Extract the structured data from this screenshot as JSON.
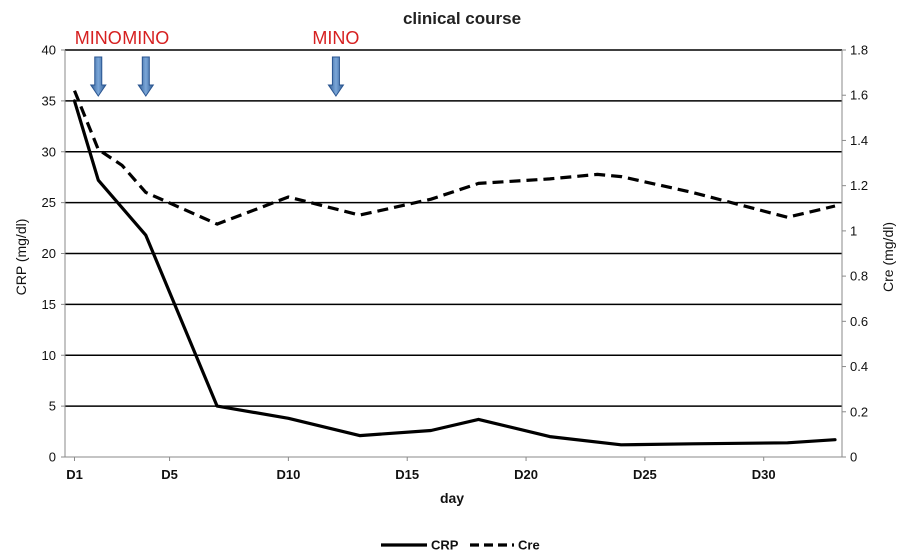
{
  "chart_data": {
    "type": "line",
    "title": "clinical course",
    "xlabel": "day",
    "ylabel_left": "CRP (mg/dl)",
    "ylabel_right": "Cre (mg/dl)",
    "xlim": [
      1,
      33
    ],
    "ylim_left": [
      0,
      40
    ],
    "ylim_right": [
      0,
      1.8
    ],
    "y_ticks_left": [
      "0",
      "5",
      "10",
      "15",
      "20",
      "25",
      "30",
      "35",
      "40"
    ],
    "y_ticks_right": [
      "0",
      "0.2",
      "0.4",
      "0.6",
      "0.8",
      "1",
      "1.2",
      "1.4",
      "1.6",
      "1.8"
    ],
    "x_ticks": [
      {
        "day": 1,
        "label": "D1"
      },
      {
        "day": 5,
        "label": "D5"
      },
      {
        "day": 10,
        "label": "D10"
      },
      {
        "day": 15,
        "label": "D15"
      },
      {
        "day": 20,
        "label": "D20"
      },
      {
        "day": 25,
        "label": "D25"
      },
      {
        "day": 30,
        "label": "D30"
      }
    ],
    "grid": "horizontal",
    "legend_position": "bottom",
    "series": [
      {
        "name": "CRP",
        "axis": "left",
        "style": "solid",
        "color": "#000000",
        "x": [
          1,
          2,
          4,
          7,
          10,
          13,
          16,
          18,
          21,
          24,
          27,
          31,
          33
        ],
        "y": [
          35,
          27.2,
          21.8,
          5,
          3.8,
          2.1,
          2.6,
          3.7,
          2,
          1.2,
          1.3,
          1.4,
          1.7
        ]
      },
      {
        "name": "Cre",
        "axis": "right",
        "style": "dashed",
        "color": "#000000",
        "x": [
          1,
          2,
          3,
          4,
          7,
          10,
          13,
          16,
          18,
          21,
          23,
          24,
          27,
          31,
          33
        ],
        "y": [
          1.62,
          1.36,
          1.29,
          1.17,
          1.03,
          1.15,
          1.07,
          1.14,
          1.21,
          1.23,
          1.25,
          1.24,
          1.17,
          1.06,
          1.11
        ]
      }
    ],
    "annotations": [
      {
        "label": "MINO",
        "day": 2,
        "color": "#d62020"
      },
      {
        "label": "MINO",
        "day": 4,
        "color": "#d62020"
      },
      {
        "label": "MINO",
        "day": 12,
        "color": "#d62020"
      }
    ]
  }
}
